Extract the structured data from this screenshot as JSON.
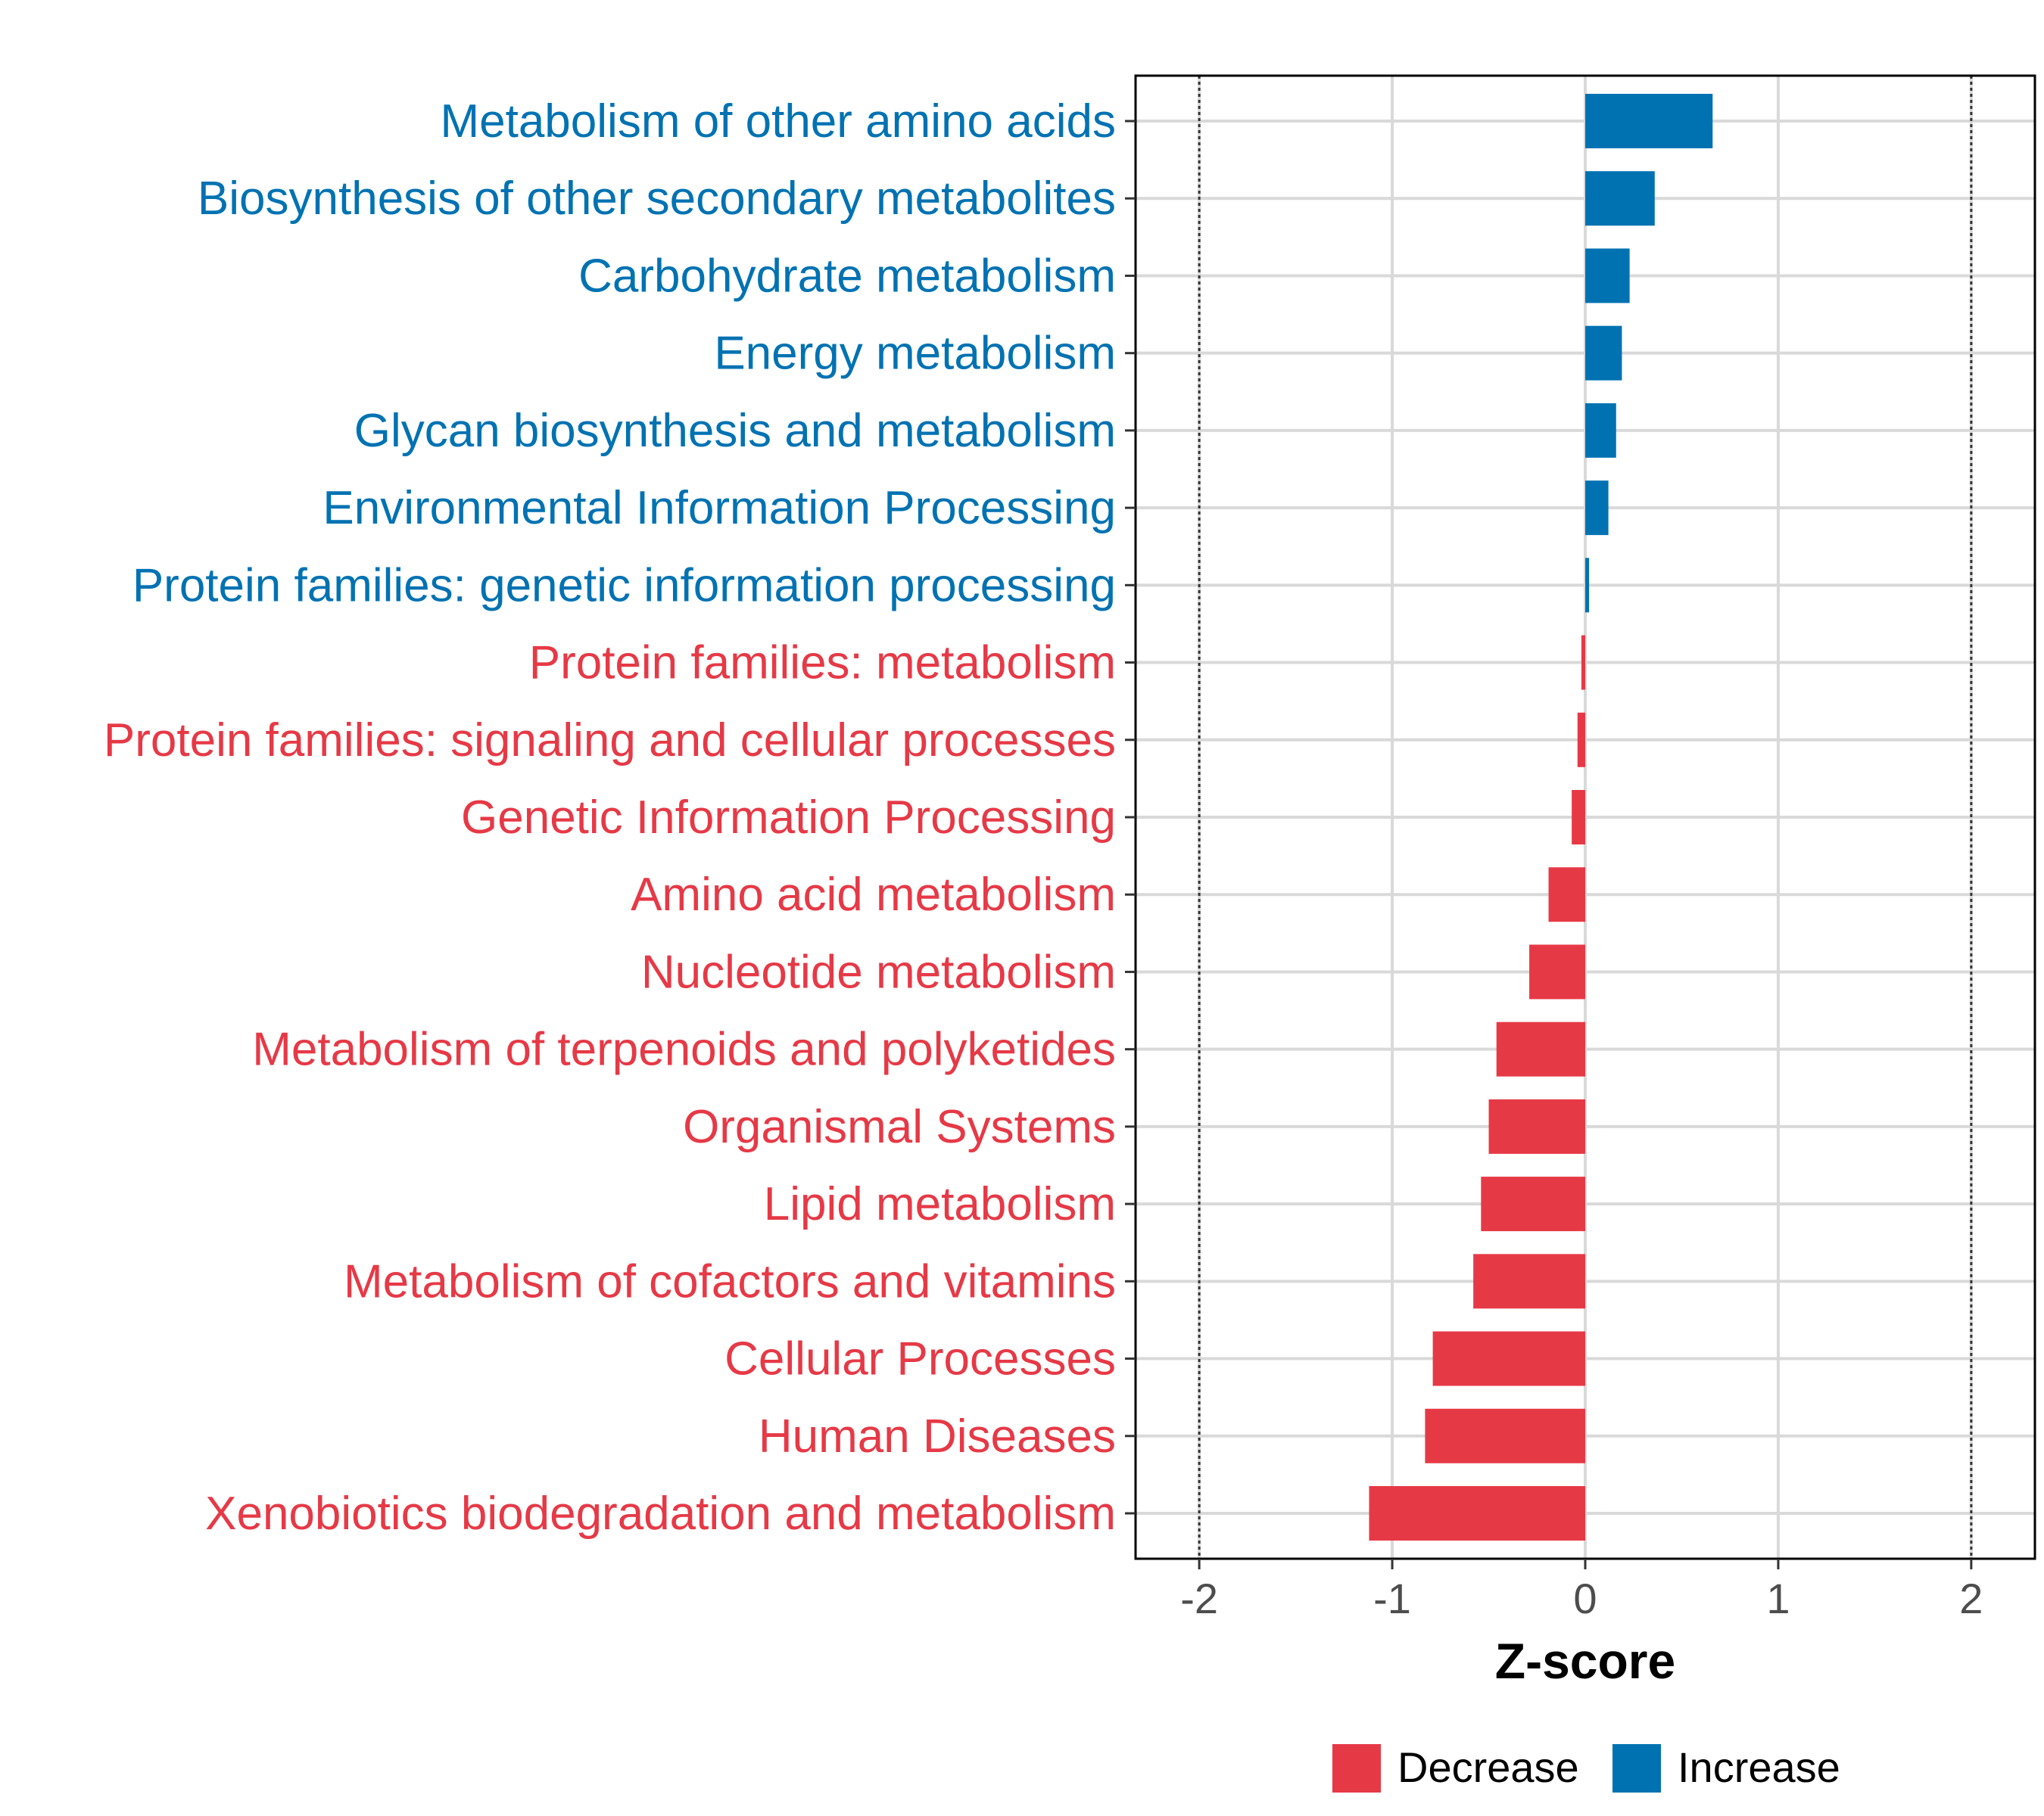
{
  "chart_data": {
    "type": "bar",
    "orientation": "horizontal",
    "categories": [
      "Metabolism of other amino acids",
      "Biosynthesis of other secondary metabolites",
      "Carbohydrate metabolism",
      "Energy metabolism",
      "Glycan biosynthesis and metabolism",
      "Environmental Information Processing",
      "Protein families: genetic information processing",
      "Protein families: metabolism",
      "Protein families: signaling and cellular processes",
      "Genetic Information Processing",
      "Amino acid metabolism",
      "Nucleotide metabolism",
      "Metabolism of terpenoids and polyketides",
      "Organismal Systems",
      "Lipid metabolism",
      "Metabolism of cofactors and vitamins",
      "Cellular Processes",
      "Human Diseases",
      "Xenobiotics biodegradation and metabolism"
    ],
    "values": [
      0.66,
      0.36,
      0.23,
      0.19,
      0.16,
      0.12,
      0.02,
      -0.02,
      -0.04,
      -0.07,
      -0.19,
      -0.29,
      -0.46,
      -0.5,
      -0.54,
      -0.58,
      -0.79,
      -0.83,
      -1.12
    ],
    "groups": [
      "Increase",
      "Increase",
      "Increase",
      "Increase",
      "Increase",
      "Increase",
      "Increase",
      "Decrease",
      "Decrease",
      "Decrease",
      "Decrease",
      "Decrease",
      "Decrease",
      "Decrease",
      "Decrease",
      "Decrease",
      "Decrease",
      "Decrease",
      "Decrease"
    ],
    "xlabel": "Z-score",
    "ylabel": "",
    "xlim": [
      -2.33,
      2.33
    ],
    "xticks": [
      "-2",
      "-1",
      "0",
      "1",
      "2"
    ],
    "reference_lines": [
      -2,
      2
    ],
    "grid": true,
    "legend": {
      "position": "bottom",
      "entries": [
        {
          "name": "Decrease",
          "color": "#e63946"
        },
        {
          "name": "Increase",
          "color": "#0072b2"
        }
      ]
    },
    "colors": {
      "Decrease": "#e63946",
      "Increase": "#0072b2"
    }
  }
}
